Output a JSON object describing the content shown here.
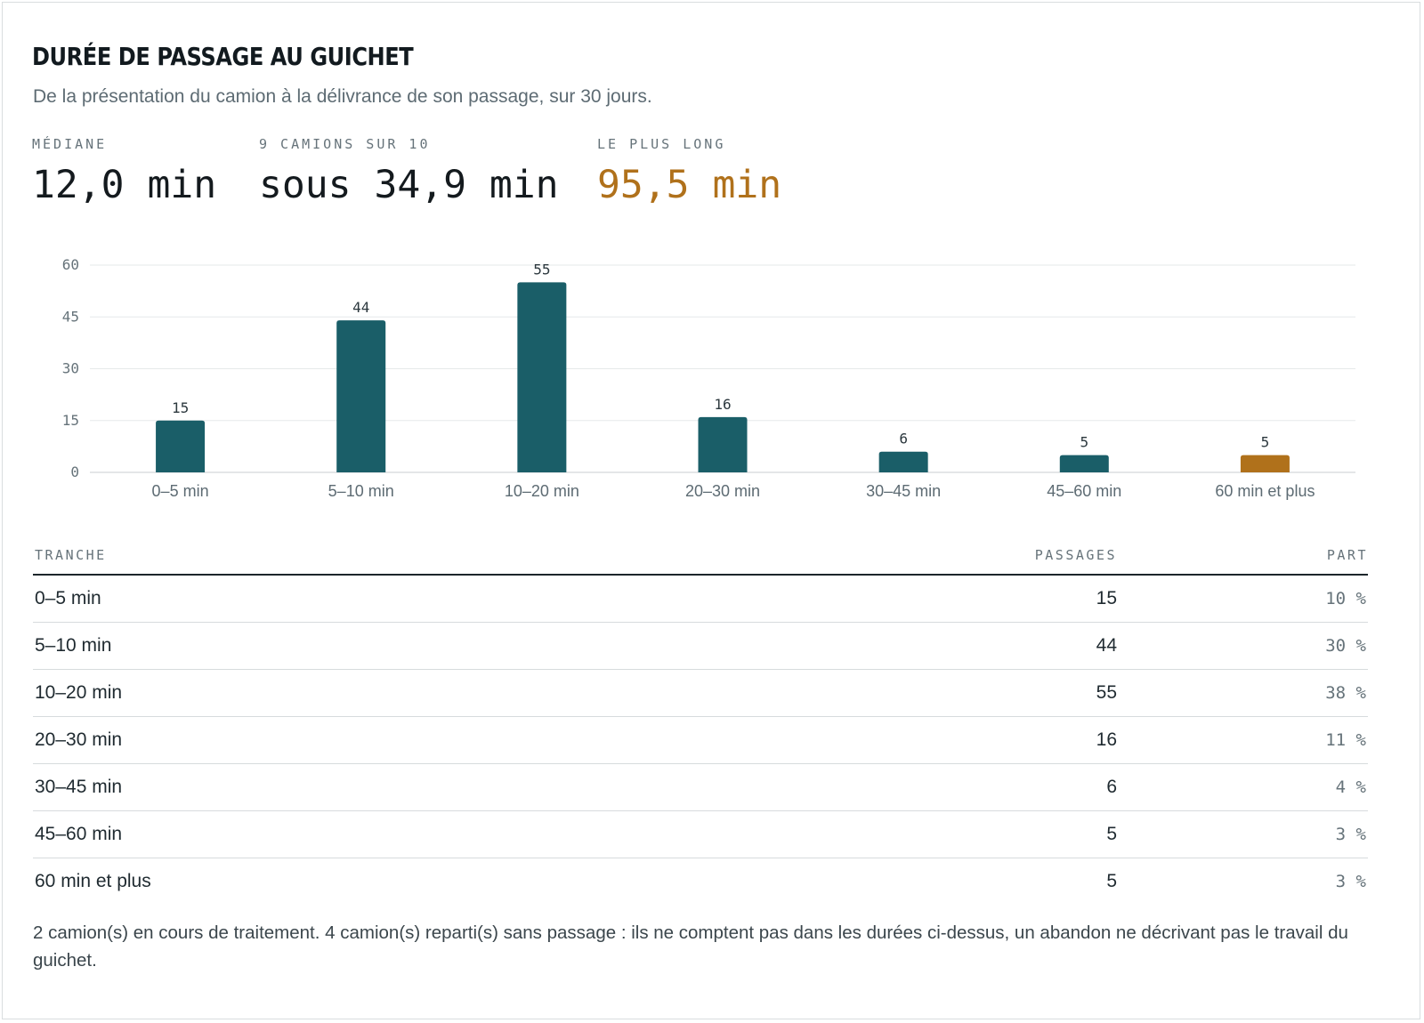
{
  "header": {
    "title": "DURÉE DE PASSAGE AU GUICHET",
    "subtitle": "De la présentation du camion à la délivrance de son passage, sur 30 jours."
  },
  "stats": [
    {
      "label": "MÉDIANE",
      "value": "12,0 min"
    },
    {
      "label": "9 CAMIONS SUR 10",
      "value": "sous 34,9 min"
    },
    {
      "label": "LE PLUS LONG",
      "value": "95,5 min"
    }
  ],
  "colors": {
    "bar": "#1a5e68",
    "highlight": "#b0711b",
    "grid": "#e6e9ea"
  },
  "chart_data": {
    "type": "bar",
    "categories": [
      "0–5 min",
      "5–10 min",
      "10–20 min",
      "20–30 min",
      "30–45 min",
      "45–60 min",
      "60 min et plus"
    ],
    "values": [
      15,
      44,
      55,
      16,
      6,
      5,
      5
    ],
    "highlight_index": 6,
    "yticks": [
      0,
      15,
      30,
      45,
      60
    ],
    "ylim": [
      0,
      60
    ],
    "grid": true,
    "title": "",
    "xlabel": "",
    "ylabel": ""
  },
  "table": {
    "headers": {
      "range": "TRANCHE",
      "count": "PASSAGES",
      "share": "PART"
    },
    "rows": [
      {
        "range": "0–5 min",
        "count": "15",
        "share": "10 %"
      },
      {
        "range": "5–10 min",
        "count": "44",
        "share": "30 %"
      },
      {
        "range": "10–20 min",
        "count": "55",
        "share": "38 %"
      },
      {
        "range": "20–30 min",
        "count": "16",
        "share": "11 %"
      },
      {
        "range": "30–45 min",
        "count": "6",
        "share": "4 %"
      },
      {
        "range": "45–60 min",
        "count": "5",
        "share": "3 %"
      },
      {
        "range": "60 min et plus",
        "count": "5",
        "share": "3 %"
      }
    ]
  },
  "footnote": "2 camion(s) en cours de traitement. 4 camion(s) reparti(s) sans passage : ils ne comptent pas dans les durées ci-dessus, un abandon ne décrivant pas le travail du guichet."
}
